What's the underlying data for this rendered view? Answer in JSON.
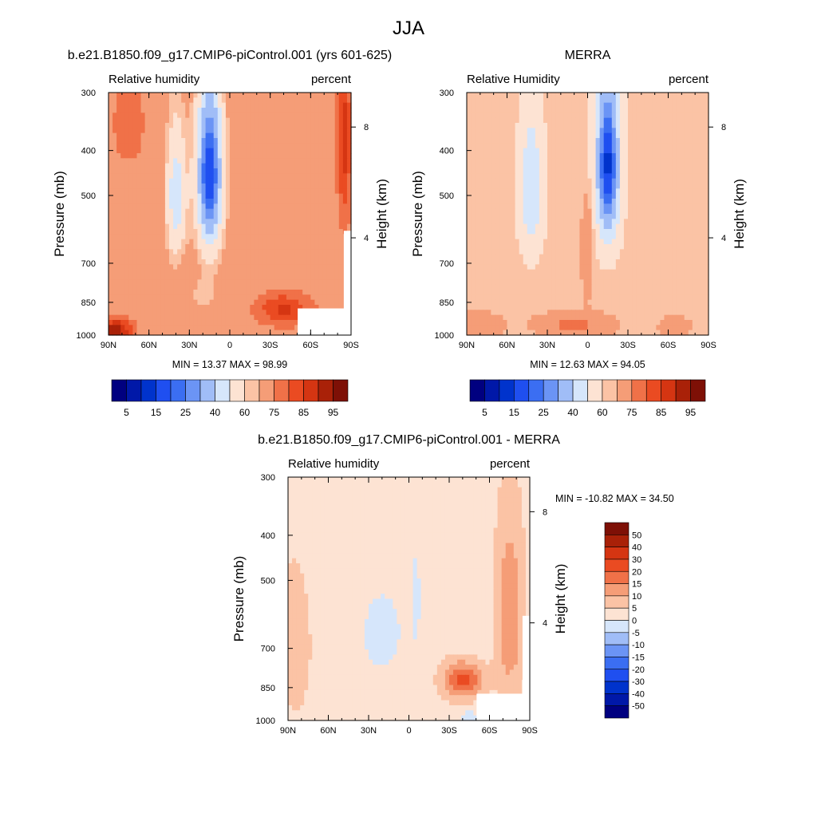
{
  "figure_title": "JJA",
  "chart_data": [
    {
      "type": "heatmap",
      "id": "model",
      "title": "b.e21.B1850.f09_g17.CMIP6-piControl.001 (yrs 601-625)",
      "left_label": "Relative humidity",
      "right_label": "percent",
      "ylabel": "Pressure (mb)",
      "ylabel_right": "Height (km)",
      "x_ticks": [
        "90N",
        "60N",
        "30N",
        "0",
        "30S",
        "60S",
        "90S"
      ],
      "y_ticks": [
        "300",
        "400",
        "500",
        "700",
        "850",
        "1000"
      ],
      "y_ticks_right": [
        "8",
        "4"
      ],
      "stats": "MIN =  13.37  MAX =  98.99",
      "colorbar": {
        "orientation": "horizontal",
        "levels": [
          5,
          10,
          15,
          20,
          25,
          30,
          40,
          50,
          60,
          65,
          75,
          80,
          85,
          90,
          95
        ],
        "labels": [
          "5",
          "15",
          "25",
          "40",
          "60",
          "75",
          "85",
          "95"
        ]
      },
      "field": {
        "bg": 72,
        "features": [
          {
            "lat": 15,
            "p": 450,
            "sx": 10,
            "sy": 200,
            "amp": -58
          },
          {
            "lat": 40,
            "p": 500,
            "sx": 8,
            "sy": 180,
            "amp": -28
          },
          {
            "lat": 20,
            "p": 820,
            "sx": 14,
            "sy": 70,
            "amp": -8
          },
          {
            "lat": -40,
            "p": 880,
            "sx": 20,
            "sy": 70,
            "amp": 14
          },
          {
            "lat": 85,
            "p": 980,
            "sx": 12,
            "sy": 60,
            "amp": 22
          },
          {
            "lat": -85,
            "p": 380,
            "sx": 5,
            "sy": 180,
            "amp": 15
          },
          {
            "lat": 75,
            "p": 350,
            "sx": 15,
            "sy": 100,
            "amp": 5
          }
        ]
      }
    },
    {
      "type": "heatmap",
      "id": "obs",
      "title": "MERRA",
      "left_label": "Relative Humidity",
      "right_label": "percent",
      "ylabel": "Pressure (mb)",
      "ylabel_right": "Height (km)",
      "x_ticks": [
        "90N",
        "60N",
        "30N",
        "0",
        "30S",
        "60S",
        "90S"
      ],
      "y_ticks": [
        "300",
        "400",
        "500",
        "700",
        "850",
        "1000"
      ],
      "y_ticks_right": [
        "8",
        "4"
      ],
      "stats": "MIN =  12.63  MAX =  94.05",
      "colorbar": {
        "orientation": "horizontal",
        "levels": [
          5,
          10,
          15,
          20,
          25,
          30,
          40,
          50,
          60,
          65,
          75,
          80,
          85,
          90,
          95
        ],
        "labels": [
          "5",
          "15",
          "25",
          "40",
          "60",
          "75",
          "85",
          "95"
        ]
      },
      "field": {
        "bg": 63,
        "features": [
          {
            "lat": -15,
            "p": 430,
            "sx": 9,
            "sy": 180,
            "amp": -50
          },
          {
            "lat": 42,
            "p": 480,
            "sx": 9,
            "sy": 170,
            "amp": -22
          },
          {
            "lat": 0,
            "p": 650,
            "sx": 4,
            "sy": 150,
            "amp": 12
          },
          {
            "lat": 10,
            "p": 950,
            "sx": 25,
            "sy": 50,
            "amp": 15
          },
          {
            "lat": -65,
            "p": 960,
            "sx": 10,
            "sy": 45,
            "amp": 10
          },
          {
            "lat": 80,
            "p": 960,
            "sx": 15,
            "sy": 60,
            "amp": 10
          }
        ]
      }
    },
    {
      "type": "heatmap",
      "id": "diff",
      "title": "b.e21.B1850.f09_g17.CMIP6-piControl.001 - MERRA",
      "left_label": "Relative humidity",
      "right_label": "percent",
      "ylabel": "Pressure (mb)",
      "ylabel_right": "Height (km)",
      "x_ticks": [
        "90N",
        "60N",
        "30N",
        "0",
        "30S",
        "60S",
        "90S"
      ],
      "y_ticks": [
        "300",
        "400",
        "500",
        "700",
        "850",
        "1000"
      ],
      "y_ticks_right": [
        "8",
        "4"
      ],
      "stats": "MIN = -10.82  MAX =  34.50",
      "colorbar": {
        "orientation": "vertical",
        "levels": [
          -50,
          -40,
          -30,
          -20,
          -15,
          -10,
          -5,
          0,
          5,
          10,
          15,
          20,
          30,
          40,
          50
        ],
        "labels": [
          "-50",
          "-40",
          "-30",
          "-20",
          "-15",
          "-10",
          "-5",
          "0",
          "5",
          "10",
          "15",
          "20",
          "30",
          "40",
          "50"
        ]
      },
      "field": {
        "bg": 3,
        "features": [
          {
            "lat": -40,
            "p": 820,
            "sx": 14,
            "sy": 70,
            "amp": 20
          },
          {
            "lat": -75,
            "p": 600,
            "sx": 10,
            "sy": 260,
            "amp": 12
          },
          {
            "lat": 20,
            "p": 650,
            "sx": 14,
            "sy": 120,
            "amp": -7
          },
          {
            "lat": -5,
            "p": 550,
            "sx": 4,
            "sy": 150,
            "amp": -5
          },
          {
            "lat": 85,
            "p": 700,
            "sx": 14,
            "sy": 300,
            "amp": 4
          },
          {
            "lat": -45,
            "p": 980,
            "sx": 6,
            "sy": 30,
            "amp": -6
          }
        ]
      }
    }
  ]
}
